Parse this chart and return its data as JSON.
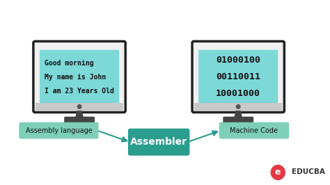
{
  "bg_color": "#ffffff",
  "monitor_outline_color": "#222222",
  "monitor_screen_color": "#7dd8d8",
  "left_screen_lines": [
    "Good morning",
    "My name is John",
    "I am 23 Years Old"
  ],
  "right_screen_lines": [
    "01000100",
    "00110011",
    "10001000"
  ],
  "left_label": "Assembly language",
  "right_label": "Machine Code",
  "center_label": "Assembler",
  "label_bg_light": "#7ecfb8",
  "label_bg_dark": "#2a9d8f",
  "arrow_color": "#2a9d8f",
  "educba_text": "EDUCBA",
  "educba_color": "#e63946",
  "educba_text_color": "#333333"
}
